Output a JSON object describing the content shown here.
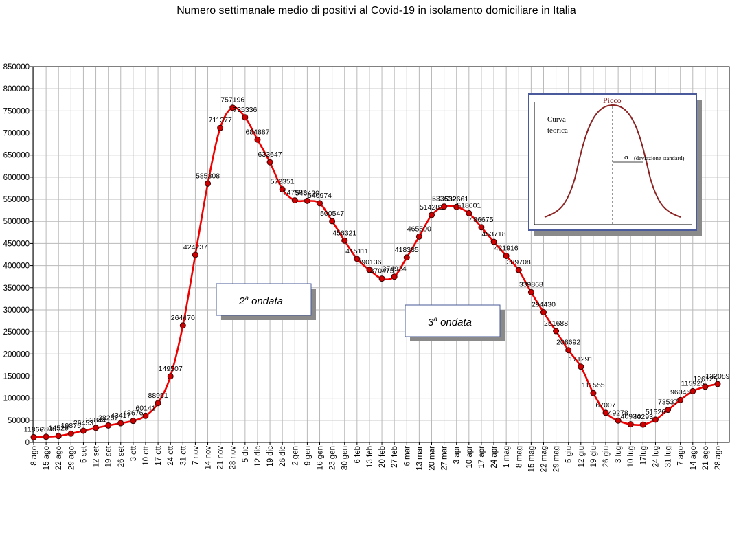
{
  "chart_data": {
    "type": "line",
    "title": "Numero settimanale medio di positivi al Covid-19  in isolamento domiciliare in Italia",
    "xlabel": "",
    "ylabel": "",
    "ylim": [
      0,
      850000
    ],
    "y_ticks": [
      0,
      50000,
      100000,
      150000,
      200000,
      250000,
      300000,
      350000,
      400000,
      450000,
      500000,
      550000,
      600000,
      650000,
      700000,
      750000,
      800000,
      850000
    ],
    "grid": true,
    "legend": "none",
    "line_color": "#ee0000",
    "marker_color": "#cc0000",
    "categories": [
      "8 ago",
      "15 ago",
      "22 ago",
      "29 ago",
      "5 set",
      "12 set",
      "19 set",
      "26 set",
      "3 ott",
      "10 ott",
      "17 ott",
      "24 ott",
      "31 ott",
      "7 nov",
      "14 nov",
      "21 nov",
      "28 nov",
      "5 dic",
      "12 dic",
      "19 dic",
      "26 dic",
      "2 gen",
      "9 gen",
      "16 gen",
      "23 gen",
      "30 gen",
      "6 feb",
      "13 feb",
      "20 feb",
      "27 feb",
      "6 mar",
      "13 mar",
      "20 mar",
      "27 mar",
      "3 apr",
      "10 apr",
      "17 apr",
      "24 apr",
      "1 mag",
      "8 mag",
      "15 mag",
      "22 mag",
      "29 mag",
      "5 giu",
      "12 giu",
      "19 giu",
      "26 giu",
      "3 lug",
      "10 lug",
      "17lug",
      "24 lug",
      "31 lug",
      "7 ago",
      "14 ago",
      "21 ago",
      "28 ago"
    ],
    "series": [
      {
        "name": "",
        "values": [
          11866,
          12806,
          14529,
          19875,
          26453,
          32844,
          38257,
          43417,
          48676,
          60141,
          88951,
          149507,
          264470,
          424237,
          585308,
          711377,
          757196,
          735336,
          684887,
          633647,
          572351,
          547583,
          546420,
          540974,
          500547,
          456321,
          415111,
          390136,
          370475,
          374924,
          418385,
          465590,
          514281,
          533632,
          532661,
          518601,
          486675,
          453718,
          421916,
          389708,
          339868,
          294430,
          251688,
          208692,
          171291,
          111555,
          67007,
          49278,
          40934,
          40293,
          51526,
          73537,
          96046,
          115925,
          126125,
          132089
        ]
      }
    ],
    "data_labels": [
      "11866",
      "12806",
      "14529",
      "19875",
      "26453",
      "32844",
      "38257",
      "43417",
      "48676",
      "60141",
      "88951",
      "149507",
      "264470",
      "424237",
      "585308",
      "711377",
      "757196",
      "735336",
      "684887",
      "633647",
      "572351",
      "547583",
      "546420",
      "540974",
      "500547",
      "456321",
      "415111",
      "390136",
      "370475",
      "374924",
      "418385",
      "465590",
      "514281",
      "533632",
      "532661",
      "518601",
      "486675",
      "453718",
      "421916",
      "389708",
      "339868",
      "294430",
      "251688",
      "208692",
      "171291",
      "111555",
      "67007",
      "49278",
      "40934",
      "40293",
      "51526",
      "73537",
      "96046",
      "115925",
      "126125",
      "132089"
    ],
    "annotations": [
      {
        "name": "wave-2-label",
        "base": "2",
        "sup": "a",
        "text": " ondata"
      },
      {
        "name": "wave-3-label",
        "base": "3",
        "sup": "a",
        "text": " ondata"
      }
    ],
    "inset": {
      "picco": "Picco",
      "curva_line1": "Curva",
      "curva_line2": "teorica",
      "sigma_symbol": "σ",
      "sigma_text": "(deviazione standard)",
      "curve_color": "#8b2323",
      "border_color": "#4a5a9a"
    }
  }
}
